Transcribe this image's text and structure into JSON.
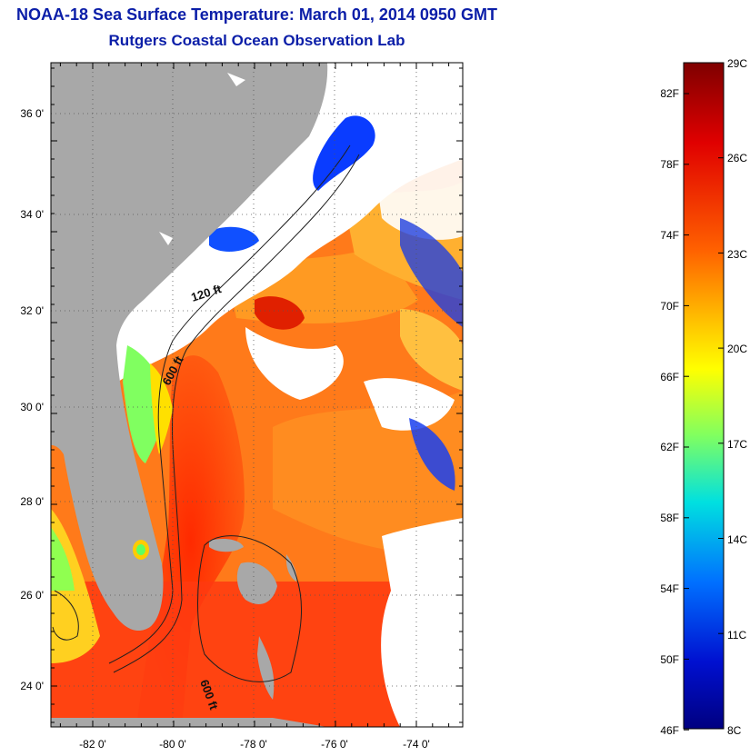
{
  "header": {
    "title": "NOAA-18 Sea Surface Temperature:  March 01, 2014 0950 GMT",
    "subtitle": "Rutgers Coastal Ocean Observation Lab"
  },
  "map": {
    "lat_labels": [
      "36 0'",
      "34 0'",
      "32 0'",
      "30 0'",
      "28 0'",
      "26 0'",
      "24 0'"
    ],
    "lon_labels": [
      "-82 0'",
      "-80 0'",
      "-78 0'",
      "-76 0'",
      "-74 0'"
    ],
    "contour_labels": [
      "120 ft",
      "600 ft",
      "600 ft"
    ],
    "land_color": "#a8a8a8",
    "cloud_color": "#ffffff"
  },
  "colorbar": {
    "fahrenheit_labels": [
      "82F",
      "78F",
      "74F",
      "70F",
      "66F",
      "62F",
      "58F",
      "54F",
      "50F",
      "46F"
    ],
    "celsius_labels": [
      "29C",
      "26C",
      "23C",
      "20C",
      "17C",
      "14C",
      "11C",
      "8C"
    ],
    "colors": [
      "#7f0000",
      "#ff0000",
      "#ff7f00",
      "#ffff00",
      "#7fff7f",
      "#00ffff",
      "#007fff",
      "#0000ff",
      "#00008f"
    ]
  }
}
